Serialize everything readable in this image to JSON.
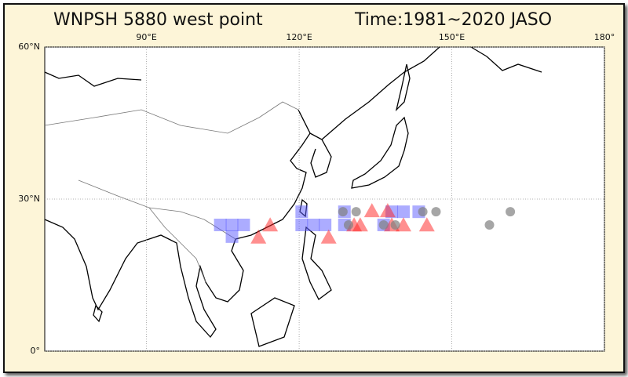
{
  "map": {
    "title": "WNPSH 5880 west point",
    "time": "Time:1981~2020 JASO",
    "xlim": [
      70,
      180
    ],
    "ylim": [
      0,
      60
    ],
    "xticks": [
      {
        "value": 90,
        "label": "90°E"
      },
      {
        "value": 120,
        "label": "120°E"
      },
      {
        "value": 150,
        "label": "150°E"
      },
      {
        "value": 180,
        "label": "180°"
      }
    ],
    "yticks": [
      {
        "value": 0,
        "label": "0°"
      },
      {
        "value": 30,
        "label": "30°N"
      },
      {
        "value": 60,
        "label": "60°N"
      }
    ],
    "grid": true,
    "series": [
      {
        "marker": "square",
        "color": "#5a5aff",
        "lon": [
          104.5,
          106.8,
          109.1,
          106.8,
          120.5,
          120.5,
          122.8,
          125.1,
          128.9,
          128.9,
          136.6,
          138.2,
          140.5,
          143.5
        ],
        "lat": [
          24.9,
          24.9,
          24.9,
          22.6,
          27.5,
          24.9,
          24.9,
          24.9,
          27.5,
          24.9,
          24.9,
          27.5,
          27.5,
          27.5
        ]
      },
      {
        "marker": "triangle",
        "color": "#ff2020",
        "lon": [
          114.3,
          112.0,
          125.8,
          130.8,
          132.0,
          134.3,
          137.4,
          138.2,
          140.5,
          145.1
        ],
        "lat": [
          24.7,
          22.3,
          22.3,
          24.7,
          24.7,
          27.5,
          27.5,
          24.7,
          24.7,
          24.7
        ]
      },
      {
        "marker": "circle",
        "color": "#808080",
        "lon": [
          128.6,
          131.2,
          144.3,
          146.9,
          157.4,
          161.5,
          129.7,
          136.6,
          138.9
        ],
        "lat": [
          27.5,
          27.5,
          27.5,
          27.5,
          24.9,
          27.5,
          24.9,
          24.9,
          24.9
        ]
      }
    ]
  }
}
